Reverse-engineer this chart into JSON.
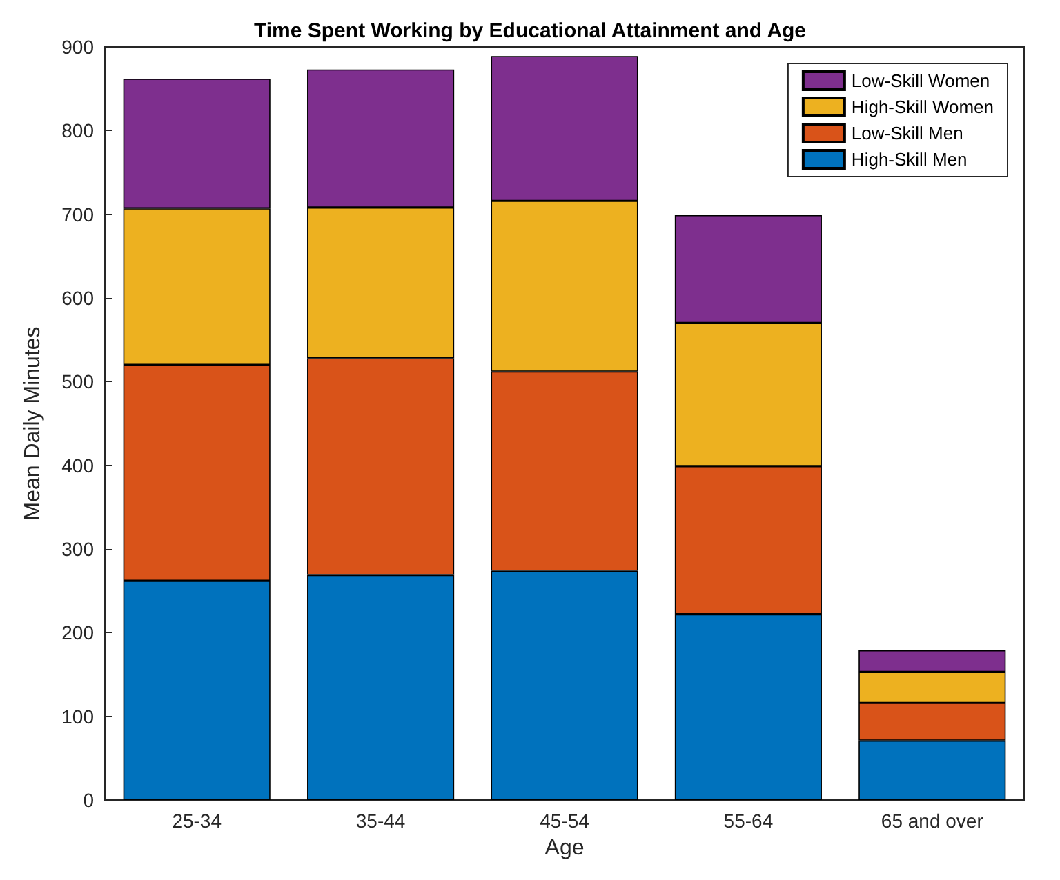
{
  "chart_data": {
    "type": "bar",
    "title": "Time Spent Working by Educational Attainment and Age",
    "xlabel": "Age",
    "ylabel": "Mean Daily Minutes",
    "categories": [
      "25-34",
      "35-44",
      "45-54",
      "55-64",
      "65 and over"
    ],
    "stacked": true,
    "series": [
      {
        "name": "High-Skill Men",
        "color": "#0072bd",
        "values": [
          262,
          269,
          274,
          222,
          71
        ]
      },
      {
        "name": "Low-Skill Men",
        "color": "#d95319",
        "values": [
          258,
          259,
          238,
          177,
          45
        ]
      },
      {
        "name": "High-Skill Women",
        "color": "#edb120",
        "values": [
          187,
          180,
          204,
          171,
          37
        ]
      },
      {
        "name": "Low-Skill Women",
        "color": "#7e2f8e",
        "values": [
          155,
          165,
          173,
          129,
          26
        ]
      }
    ],
    "ylim": [
      0,
      900
    ],
    "yticks": [
      0,
      100,
      200,
      300,
      400,
      500,
      600,
      700,
      800,
      900
    ],
    "grid": false,
    "legend": "top right"
  }
}
